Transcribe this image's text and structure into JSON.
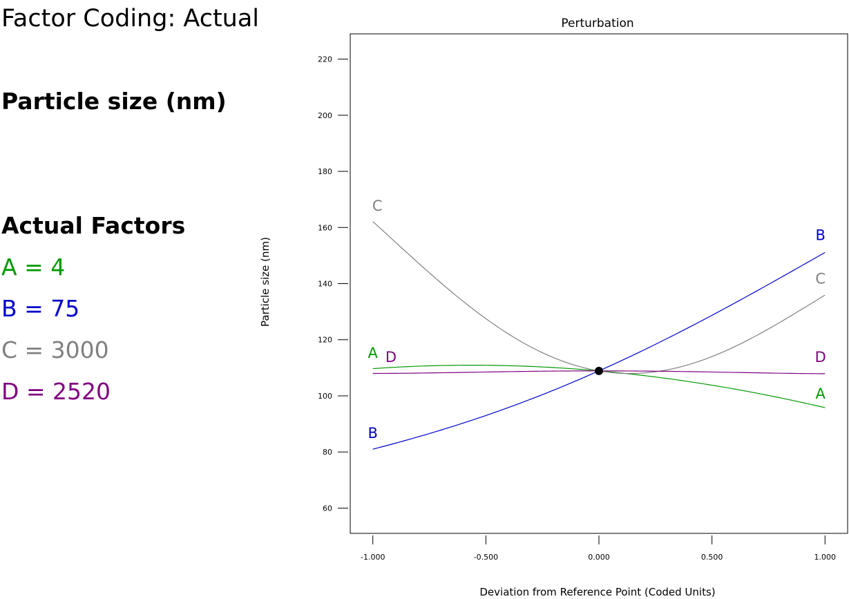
{
  "left_panel": {
    "factor_coding": "Factor Coding: Actual",
    "response_title": "Particle size (nm)",
    "actual_factors_title": "Actual Factors",
    "factors": [
      {
        "name": "A",
        "value": "4",
        "text": "A = 4",
        "color": "#009900"
      },
      {
        "name": "B",
        "value": "75",
        "text": "B = 75",
        "color": "#0000cc"
      },
      {
        "name": "C",
        "value": "3000",
        "text": "C = 3000",
        "color": "#808080"
      },
      {
        "name": "D",
        "value": "2520",
        "text": "D = 2520",
        "color": "#800080"
      }
    ]
  },
  "chart_data": {
    "type": "line",
    "title": "Perturbation",
    "xlabel": "Deviation from Reference Point (Coded Units)",
    "ylabel": "Particle size (nm)",
    "xlim": [
      -1.1,
      1.1
    ],
    "ylim": [
      51,
      229
    ],
    "x_ticks": [
      -1,
      -0.5,
      0,
      0.5,
      1
    ],
    "x_tick_labels": [
      "-1.000",
      "-0.500",
      "0.000",
      "0.500",
      "1.000"
    ],
    "y_ticks": [
      60,
      80,
      100,
      120,
      140,
      160,
      180,
      200,
      220
    ],
    "y_tick_labels": [
      "60",
      "80",
      "100",
      "120",
      "140",
      "160",
      "180",
      "200",
      "220"
    ],
    "reference_point": {
      "x": 0,
      "y": 108.9
    },
    "series": [
      {
        "name": "A",
        "color": "#009900",
        "x": [
          -1,
          -0.5,
          0,
          0.5,
          1
        ],
        "values": [
          109.7,
          110.9,
          108.9,
          103.8,
          95.8
        ]
      },
      {
        "name": "B",
        "color": "#0000cc",
        "x": [
          -1,
          -0.5,
          0,
          0.5,
          1
        ],
        "values": [
          81.0,
          93.0,
          108.9,
          128.7,
          151.1
        ]
      },
      {
        "name": "C",
        "color": "#808080",
        "x": [
          -1,
          -0.5,
          0,
          0.5,
          1
        ],
        "values": [
          162.1,
          127.5,
          108.9,
          114.0,
          135.9
        ]
      },
      {
        "name": "D",
        "color": "#800080",
        "x": [
          -1,
          -0.5,
          0,
          0.5,
          1
        ],
        "values": [
          108.0,
          108.5,
          108.9,
          108.5,
          107.9
        ]
      }
    ],
    "curve_labels": [
      {
        "text": "C",
        "color": "#808080",
        "x": -0.98,
        "y": 166
      },
      {
        "text": "B",
        "color": "#0000cc",
        "x": 0.98,
        "y": 155.5
      },
      {
        "text": "C",
        "color": "#808080",
        "x": 0.98,
        "y": 140
      },
      {
        "text": "A",
        "color": "#009900",
        "x": -1.0,
        "y": 113.5
      },
      {
        "text": "D",
        "color": "#800080",
        "x": -0.92,
        "y": 112
      },
      {
        "text": "D",
        "color": "#800080",
        "x": 0.98,
        "y": 112
      },
      {
        "text": "A",
        "color": "#009900",
        "x": 0.98,
        "y": 99
      },
      {
        "text": "B",
        "color": "#0000cc",
        "x": -1.0,
        "y": 85
      }
    ]
  }
}
